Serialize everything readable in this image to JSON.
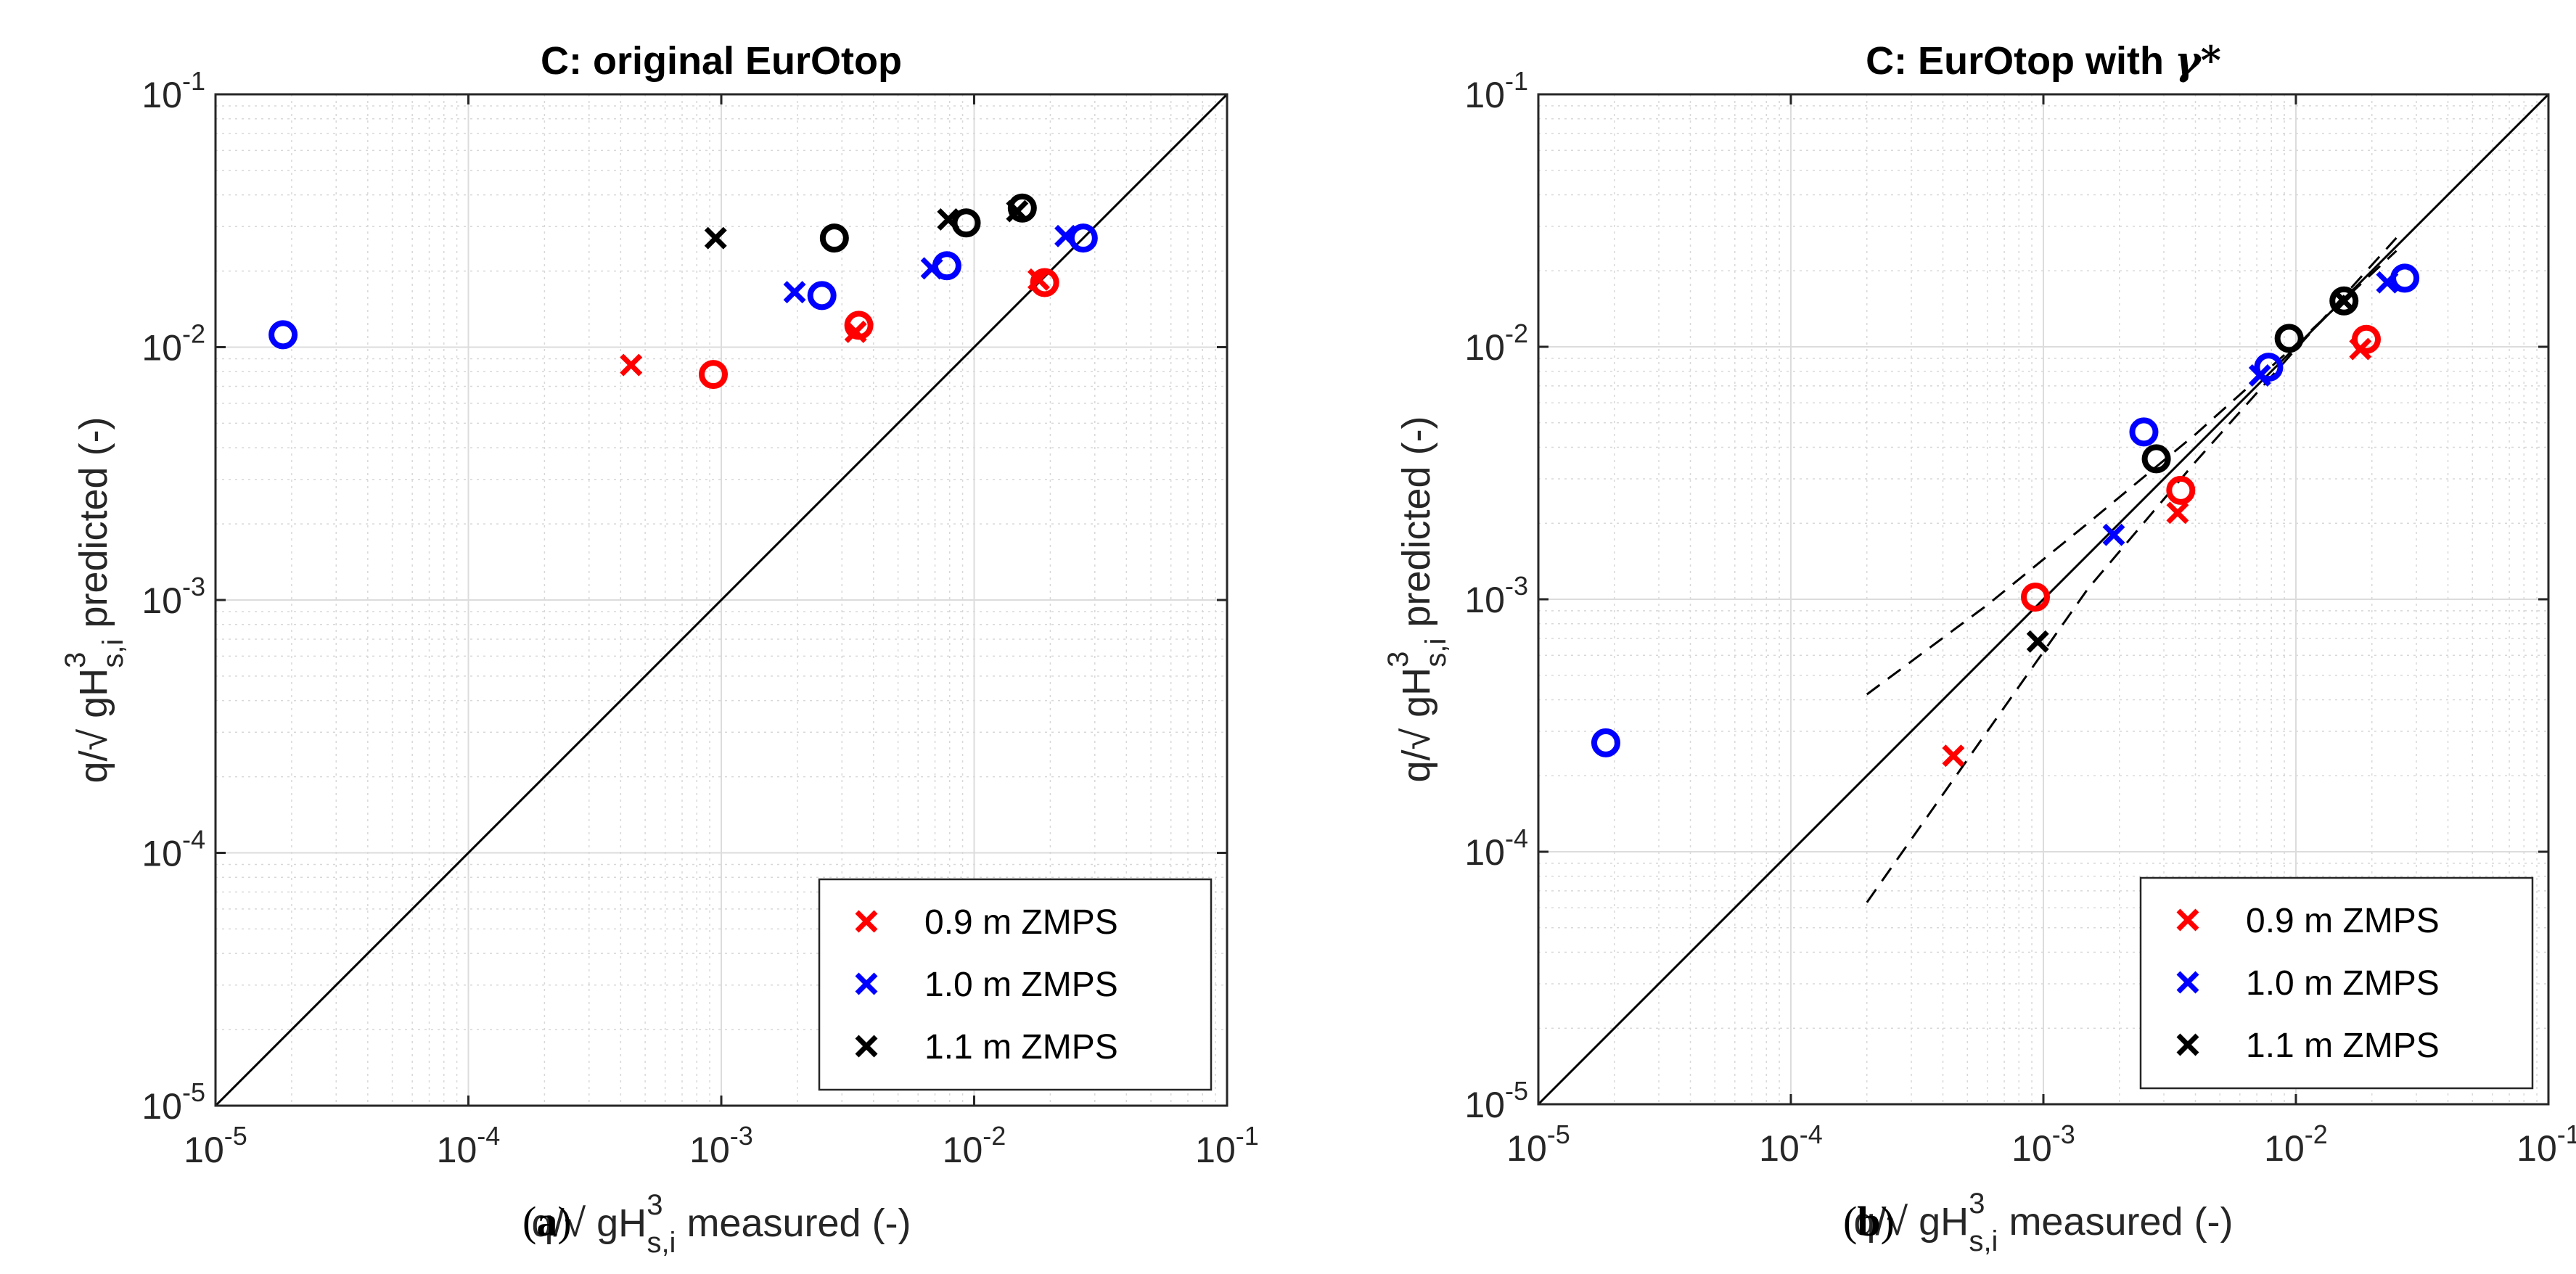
{
  "chart_data": [
    {
      "type": "scatter",
      "panel_label": "a",
      "title": "C: original EurOtop",
      "xlabel": {
        "prefix": "q/√ gH",
        "sup": "3",
        "sub": "s,i",
        "suffix": " measured (-)"
      },
      "ylabel": {
        "prefix": "q/√ gH",
        "sup": "3",
        "sub": "s,i",
        "suffix": " predicted (-)"
      },
      "xscale": "log",
      "yscale": "log",
      "xlim": [
        1e-05,
        0.1
      ],
      "ylim": [
        1e-05,
        0.1
      ],
      "ticks": [
        {
          "value": 1e-05,
          "base": "10",
          "exp": "-5"
        },
        {
          "value": 0.0001,
          "base": "10",
          "exp": "-4"
        },
        {
          "value": 0.001,
          "base": "10",
          "exp": "-3"
        },
        {
          "value": 0.01,
          "base": "10",
          "exp": "-2"
        },
        {
          "value": 0.1,
          "base": "10",
          "exp": "-1"
        }
      ],
      "grid": true,
      "legend_position": "bottom-right",
      "reference_lines": [
        {
          "style": "solid",
          "points": [
            [
              1e-05,
              1e-05
            ],
            [
              0.1,
              0.1
            ]
          ]
        }
      ],
      "series": [
        {
          "name": "0.9 m ZMPS",
          "color": "#ff0000",
          "cross": [
            [
              0.00044,
              0.0085
            ],
            [
              0.0034,
              0.0115
            ],
            [
              0.018,
              0.0185
            ]
          ],
          "circle": [
            [
              0.00093,
              0.0078
            ],
            [
              0.0035,
              0.0122
            ],
            [
              0.019,
              0.018
            ]
          ]
        },
        {
          "name": "1.0 m ZMPS",
          "color": "#0000ff",
          "cross": [
            [
              0.00195,
              0.0165
            ],
            [
              0.0068,
              0.0205
            ],
            [
              0.023,
              0.0275
            ]
          ],
          "circle": [
            [
              1.85e-05,
              0.0112
            ],
            [
              0.0025,
              0.016
            ],
            [
              0.0078,
              0.021
            ],
            [
              0.027,
              0.027
            ]
          ]
        },
        {
          "name": "1.1 m ZMPS",
          "color": "#000000",
          "cross": [
            [
              0.00095,
              0.027
            ],
            [
              0.0079,
              0.032
            ],
            [
              0.0148,
              0.0345
            ]
          ],
          "circle": [
            [
              0.0028,
              0.027
            ],
            [
              0.0093,
              0.031
            ],
            [
              0.0155,
              0.0355
            ]
          ]
        }
      ]
    },
    {
      "type": "scatter",
      "panel_label": "b",
      "title_prefix": "C: EurOtop with ",
      "title_symbol": "γ*",
      "xlabel": {
        "prefix": "q/√ gH",
        "sup": "3",
        "sub": "s,i",
        "suffix": " measured (-)"
      },
      "ylabel": {
        "prefix": "q/√ gH",
        "sup": "3",
        "sub": "s,i",
        "suffix": " predicted (-)"
      },
      "xscale": "log",
      "yscale": "log",
      "xlim": [
        1e-05,
        0.1
      ],
      "ylim": [
        1e-05,
        0.1
      ],
      "ticks": [
        {
          "value": 1e-05,
          "base": "10",
          "exp": "-5"
        },
        {
          "value": 0.0001,
          "base": "10",
          "exp": "-4"
        },
        {
          "value": 0.001,
          "base": "10",
          "exp": "-3"
        },
        {
          "value": 0.01,
          "base": "10",
          "exp": "-2"
        },
        {
          "value": 0.1,
          "base": "10",
          "exp": "-1"
        }
      ],
      "grid": true,
      "legend_position": "bottom-right",
      "reference_lines": [
        {
          "style": "solid",
          "points": [
            [
              1e-05,
              1e-05
            ],
            [
              0.1,
              0.1
            ]
          ]
        },
        {
          "style": "dashed",
          "points": [
            [
              0.0002,
              0.00042
            ],
            [
              0.0006,
              0.00095
            ],
            [
              0.0015,
              0.002
            ],
            [
              0.004,
              0.0045
            ],
            [
              0.01,
              0.0102
            ],
            [
              0.025,
              0.024
            ]
          ]
        },
        {
          "style": "dashed",
          "points": [
            [
              0.0002,
              6.3e-05
            ],
            [
              0.0006,
              0.0003
            ],
            [
              0.0015,
              0.0011
            ],
            [
              0.004,
              0.0035
            ],
            [
              0.01,
              0.0098
            ],
            [
              0.025,
              0.027
            ]
          ]
        }
      ],
      "series": [
        {
          "name": "0.9 m ZMPS",
          "color": "#ff0000",
          "cross": [
            [
              0.00044,
              0.00024
            ],
            [
              0.0034,
              0.0022
            ],
            [
              0.018,
              0.0098
            ]
          ],
          "circle": [
            [
              0.00093,
              0.00102
            ],
            [
              0.0035,
              0.0027
            ],
            [
              0.019,
              0.0107
            ]
          ]
        },
        {
          "name": "1.0 m ZMPS",
          "color": "#0000ff",
          "cross": [
            [
              0.0019,
              0.0018
            ],
            [
              0.0072,
              0.0077
            ],
            [
              0.023,
              0.018
            ]
          ],
          "circle": [
            [
              1.85e-05,
              0.00027
            ],
            [
              0.0025,
              0.0046
            ],
            [
              0.0078,
              0.0083
            ],
            [
              0.027,
              0.0187
            ]
          ]
        },
        {
          "name": "1.1 m ZMPS",
          "color": "#000000",
          "cross": [
            [
              0.00095,
              0.00068
            ],
            [
              0.0155,
              0.0152
            ]
          ],
          "circle": [
            [
              0.0028,
              0.0036
            ],
            [
              0.0094,
              0.0108
            ],
            [
              0.0155,
              0.0152
            ]
          ]
        }
      ]
    }
  ],
  "captions": {
    "a": "a",
    "b": "b"
  }
}
